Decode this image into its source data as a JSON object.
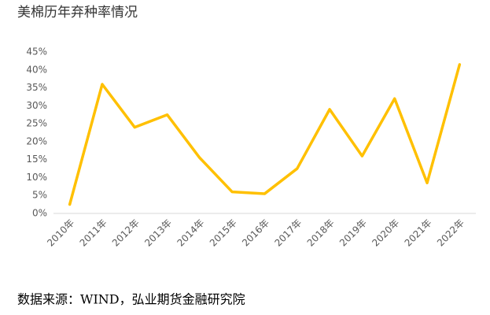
{
  "chart_data": {
    "type": "line",
    "title": "美棉历年弃种率情况",
    "source": "数据来源：WIND，弘业期货金融研究院",
    "categories": [
      "2010年",
      "2011年",
      "2012年",
      "2013年",
      "2014年",
      "2015年",
      "2016年",
      "2017年",
      "2018年",
      "2019年",
      "2020年",
      "2021年",
      "2022年"
    ],
    "values": [
      2.5,
      36,
      24,
      27.5,
      15.5,
      6,
      5.5,
      12.5,
      29,
      16,
      32,
      8.5,
      41.5
    ],
    "color": "#FFC000",
    "ylim": [
      0,
      45
    ],
    "yticks": [
      {
        "value": 0,
        "label": "0%"
      },
      {
        "value": 5,
        "label": "5%"
      },
      {
        "value": 10,
        "label": "10%"
      },
      {
        "value": 15,
        "label": "15%"
      },
      {
        "value": 20,
        "label": "20%"
      },
      {
        "value": 25,
        "label": "25%"
      },
      {
        "value": 30,
        "label": "30%"
      },
      {
        "value": 35,
        "label": "35%"
      },
      {
        "value": 40,
        "label": "40%"
      },
      {
        "value": 45,
        "label": "45%"
      }
    ],
    "grid": false
  }
}
